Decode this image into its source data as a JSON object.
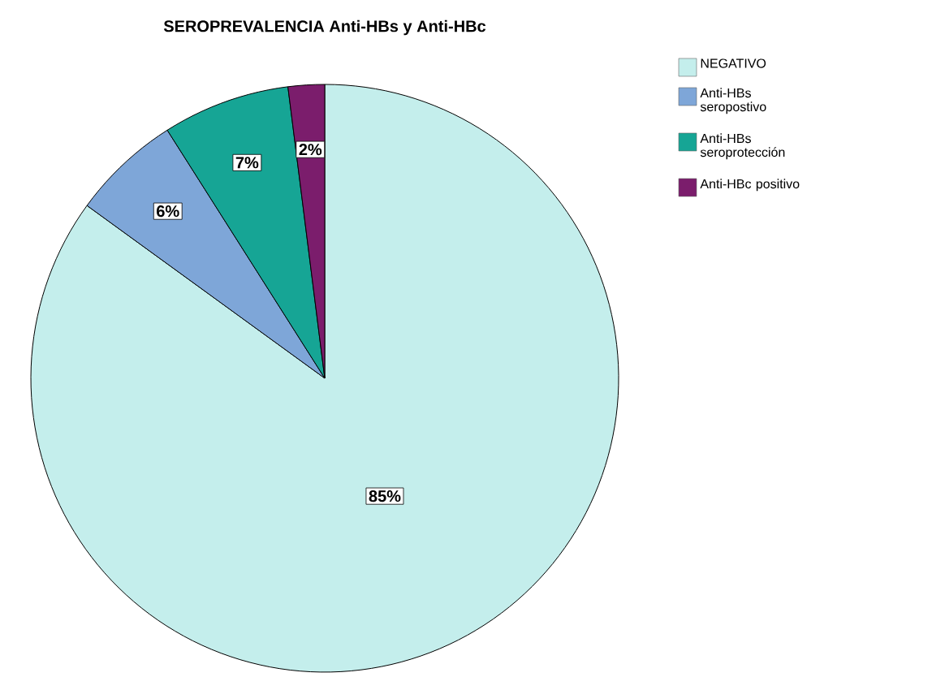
{
  "chart_data": {
    "type": "pie",
    "title": "SEROPREVALENCIA  Anti-HBs y Anti-HBc",
    "categories": [
      "NEGATIVO",
      "Anti-HBs seropostivo",
      "Anti-HBs seroprotección",
      "Anti-HBc positivo"
    ],
    "values": [
      85,
      6,
      7,
      2
    ],
    "colors": [
      "#c4eeec",
      "#7ea6d8",
      "#16a595",
      "#7b1d6c"
    ],
    "value_labels": [
      "85%",
      "6%",
      "7%",
      "2%"
    ],
    "legend": "top right"
  }
}
